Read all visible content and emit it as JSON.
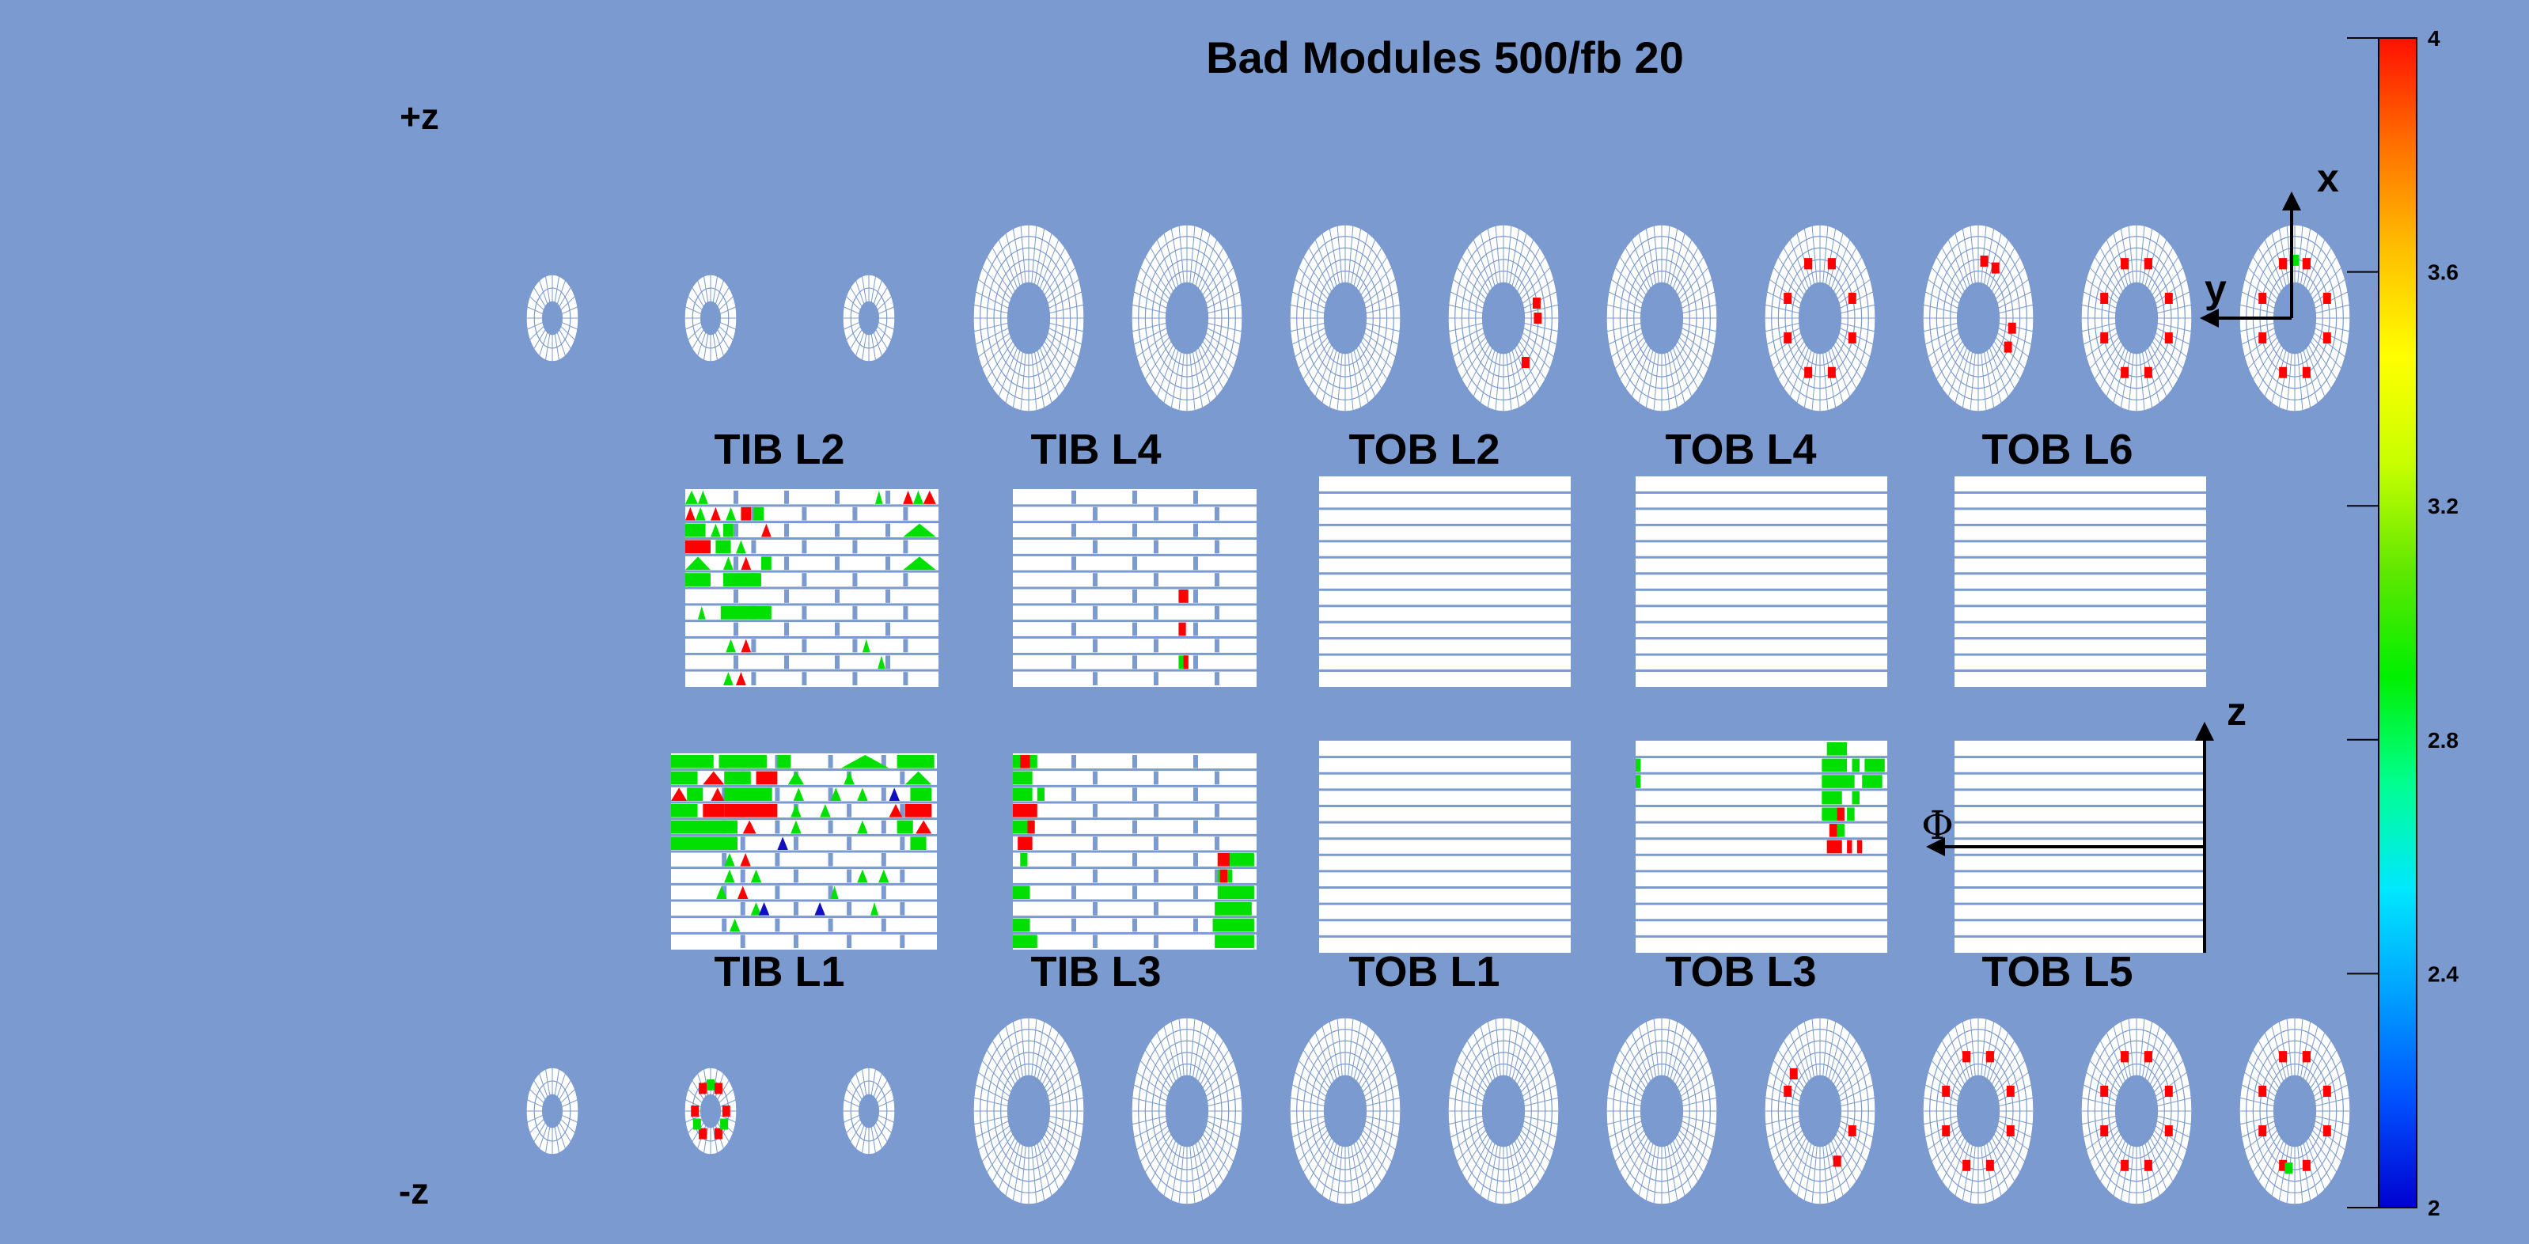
{
  "title": "Bad Modules 500/fb 20",
  "side_labels": {
    "plus_z": "+z",
    "minus_z": "-z"
  },
  "axes_labels": {
    "x": "x",
    "y": "y",
    "z": "z",
    "phi": "Φ"
  },
  "layers_top": [
    {
      "label": "TIB L2"
    },
    {
      "label": "TIB L4"
    },
    {
      "label": "TOB L2"
    },
    {
      "label": "TOB L4"
    },
    {
      "label": "TOB L6"
    }
  ],
  "layers_bottom": [
    {
      "label": "TIB L1"
    },
    {
      "label": "TIB L3"
    },
    {
      "label": "TOB L1"
    },
    {
      "label": "TOB L3"
    },
    {
      "label": "TOB L5"
    }
  ],
  "colorbar": {
    "min": 2,
    "max": 4,
    "tick_labels": [
      "4",
      "3.6",
      "3.2",
      "2.8",
      "2.4",
      "2"
    ],
    "palette": [
      "#0000d0",
      "#0050ff",
      "#00a0ff",
      "#00e8ff",
      "#00ff90",
      "#00f000",
      "#60e800",
      "#c8ff00",
      "#ffff00",
      "#ffc000",
      "#ff7000",
      "#ff1000"
    ]
  },
  "colors": {
    "background": "#7b9acf",
    "grid": "#7b9acf",
    "module": "#ffffff",
    "bad_red": "#ff0000",
    "bad_green": "#00e000",
    "bad_blue": "#1010c0",
    "text": "#000000"
  }
}
